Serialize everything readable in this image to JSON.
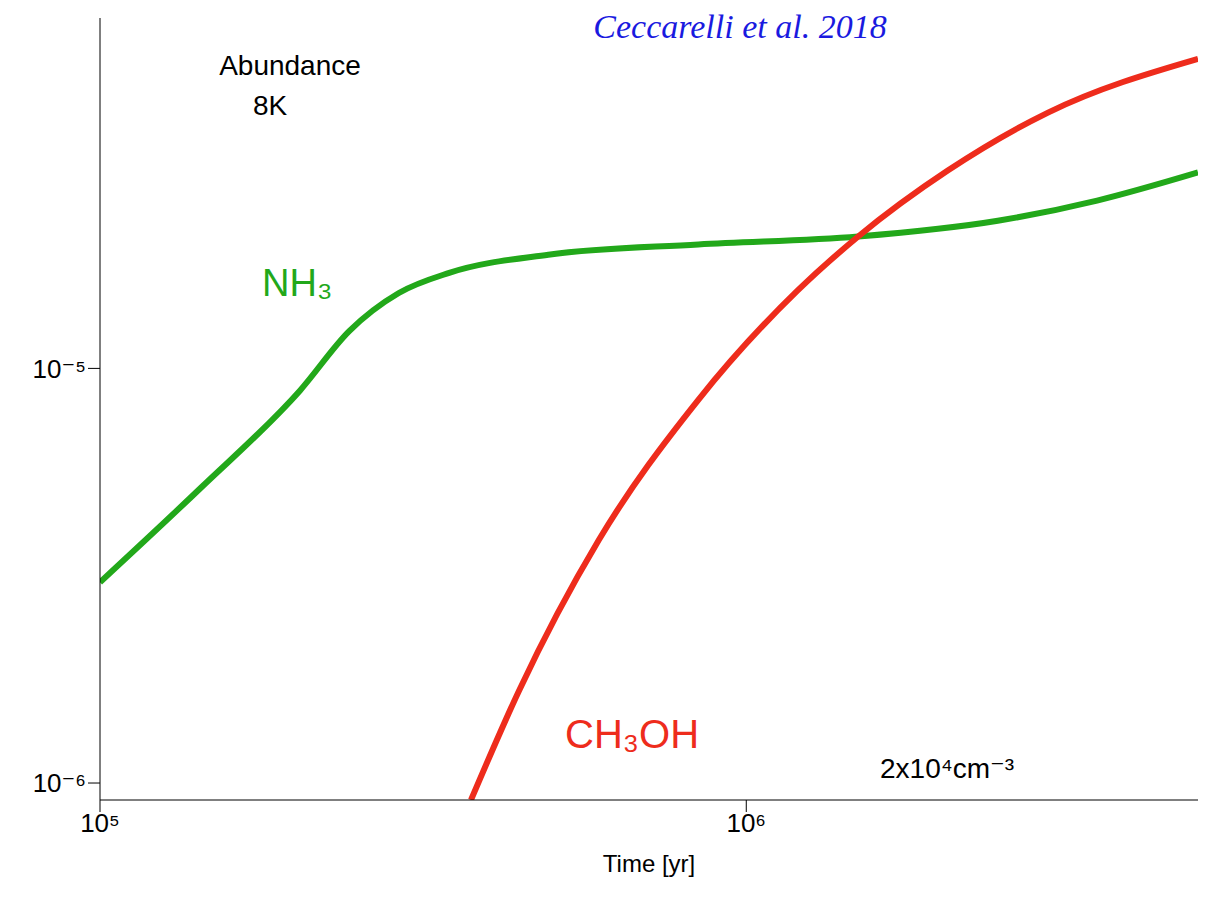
{
  "chart_data": {
    "type": "line",
    "title": "Ceccarelli et al. 2018",
    "x_label": "Time [yr]",
    "annotations": [
      "Abundance",
      "8K",
      "2x10⁴cm⁻³"
    ],
    "log": true,
    "grid": false,
    "x": [
      100000,
      143000,
      204000,
      243000,
      290000,
      347000,
      375000,
      445000,
      494000,
      591000,
      843000,
      1200000,
      1490000,
      2050000,
      2450000,
      2930000,
      3490000,
      5000000
    ],
    "series": [
      {
        "name": "NH₃",
        "color": "#22a81a",
        "values": [
          3.05e-06,
          5.14e-06,
          8.85e-06,
          1.23e-05,
          1.52e-05,
          1.7e-05,
          null,
          null,
          1.88e-05,
          null,
          1.99e-05,
          null,
          2.08e-05,
          null,
          2.27e-05,
          null,
          2.54e-05,
          2.97e-05
        ]
      },
      {
        "name": "CH₃OH",
        "color": "#ee2c1c",
        "values": [
          null,
          null,
          null,
          null,
          null,
          null,
          9.1e-07,
          1.67e-06,
          null,
          3.85e-06,
          8.4e-06,
          1.54e-05,
          2.08e-05,
          3e-05,
          null,
          4.14e-05,
          null,
          5.58e-05
        ]
      }
    ],
    "xlim": [
      100000,
      5000000
    ],
    "xticks": [
      {
        "value": 100000,
        "label": "10⁵"
      },
      {
        "value": 1000000,
        "label": "10⁶"
      }
    ],
    "ylim": [
      9.1e-07,
      7e-05
    ],
    "yticks": [
      {
        "value": 1e-06,
        "label": "10⁻⁶"
      },
      {
        "value": 1e-05,
        "label": "10⁻⁵"
      }
    ]
  }
}
